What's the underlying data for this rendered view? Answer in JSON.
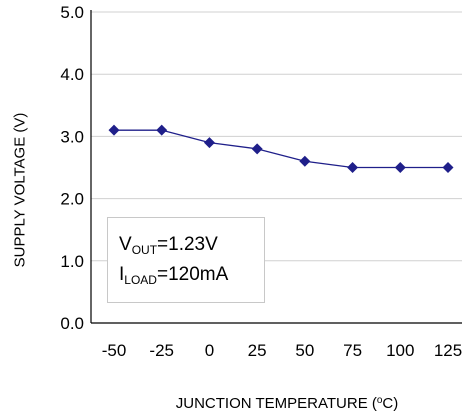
{
  "chart_data": {
    "type": "line",
    "x": [
      -50,
      -25,
      0,
      25,
      50,
      75,
      100,
      125
    ],
    "series": [
      {
        "values": [
          3.1,
          3.1,
          2.9,
          2.8,
          2.6,
          2.5,
          2.5,
          2.5
        ],
        "color": "#1f1f8a"
      }
    ],
    "ylabel": "SUPPLY VOLTAGE (V)",
    "xlabel_main": "JUNCTION TEMPERATURE (",
    "xlabel_sup": "o",
    "xlabel_tail": "C)",
    "ylim": [
      0.0,
      5.0
    ],
    "yticks": [
      "0.0",
      "1.0",
      "2.0",
      "3.0",
      "4.0",
      "5.0"
    ],
    "xticks": [
      "-50",
      "-25",
      "0",
      "25",
      "50",
      "75",
      "100",
      "125"
    ],
    "grid": true,
    "annotation": {
      "line1_main": "V",
      "line1_sub": "OUT",
      "line1_tail": "=1.23V",
      "line2_main": "I",
      "line2_sub": "LOAD",
      "line2_tail": "=120mA"
    }
  }
}
